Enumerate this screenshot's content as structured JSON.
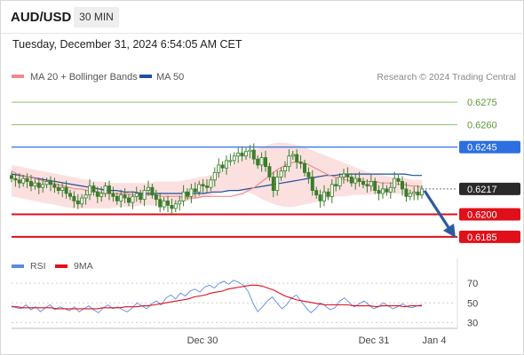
{
  "header": {
    "pair": "AUD/USD",
    "timeframe": "30 MIN",
    "timestamp": "Tuesday, December 31, 2024 6:54:05 AM CET"
  },
  "legend": {
    "ma20_label": "MA 20 + Bollinger Bands",
    "ma50_label": "MA 50",
    "credit": "Research © 2024 Trading Central"
  },
  "rsi_legend": {
    "rsi_label": "RSI",
    "ma_label": "9MA"
  },
  "colors": {
    "candle": "#3a7d2a",
    "ma20": "#f08a8a",
    "bollinger_fill": "#fbdada",
    "ma50": "#1f4e9c",
    "resistance_green": "#8cc86a",
    "pivot_blue": "#2d6fe0",
    "support_red": "#e0101a",
    "arrow": "#2c5aa0",
    "rsi": "#5b8be0",
    "rsi_ma": "#e0101a"
  },
  "chart_data": [
    {
      "type": "line",
      "title": "",
      "ylim": [
        0.6176,
        0.6284
      ],
      "x_ticks": [
        "Dec 30",
        "Dec 31",
        "Jan 4"
      ],
      "levels": [
        {
          "value": 0.6275,
          "label": "0.6275",
          "style": "green-line"
        },
        {
          "value": 0.626,
          "label": "0.6260",
          "style": "green-line"
        },
        {
          "value": 0.6245,
          "label": "0.6245",
          "style": "blue-line"
        },
        {
          "value": 0.6217,
          "label": "0.6217",
          "style": "current-price"
        },
        {
          "value": 0.62,
          "label": "0.6200",
          "style": "red-line"
        },
        {
          "value": 0.6185,
          "label": "0.6185",
          "style": "red-line"
        }
      ],
      "candles_close": [
        0.6224,
        0.6223,
        0.6221,
        0.6224,
        0.6222,
        0.6219,
        0.6221,
        0.6218,
        0.622,
        0.6222,
        0.622,
        0.6218,
        0.6216,
        0.6218,
        0.6214,
        0.6212,
        0.6209,
        0.6207,
        0.6211,
        0.6213,
        0.6219,
        0.6215,
        0.6212,
        0.6214,
        0.6219,
        0.6214,
        0.6212,
        0.6209,
        0.6213,
        0.6211,
        0.6208,
        0.6212,
        0.6214,
        0.621,
        0.6216,
        0.6218,
        0.6213,
        0.621,
        0.6205,
        0.6209,
        0.6206,
        0.6204,
        0.6207,
        0.6209,
        0.6215,
        0.6212,
        0.6217,
        0.6215,
        0.622,
        0.6219,
        0.6218,
        0.6223,
        0.6228,
        0.6233,
        0.6231,
        0.6236,
        0.6236,
        0.6239,
        0.6241,
        0.6239,
        0.6242,
        0.6243,
        0.6237,
        0.6233,
        0.6238,
        0.6232,
        0.6225,
        0.6216,
        0.6225,
        0.6229,
        0.6232,
        0.6239,
        0.624,
        0.6235,
        0.6234,
        0.6228,
        0.6225,
        0.6216,
        0.6213,
        0.6209,
        0.6215,
        0.6212,
        0.622,
        0.6219,
        0.6225,
        0.6227,
        0.6225,
        0.6221,
        0.6224,
        0.6222,
        0.622,
        0.6219,
        0.6222,
        0.6216,
        0.6214,
        0.6217,
        0.6215,
        0.6218,
        0.6224,
        0.6222,
        0.6217,
        0.6212,
        0.6214,
        0.6215,
        0.6213,
        0.6217
      ],
      "ma20": [
        0.6229,
        0.6227,
        0.6226,
        0.6225,
        0.6224,
        0.6223,
        0.6222,
        0.6221,
        0.622,
        0.6219,
        0.6218,
        0.6217,
        0.6217,
        0.6216,
        0.6216,
        0.6215,
        0.6214,
        0.6214,
        0.6214,
        0.6214,
        0.6214,
        0.6213,
        0.6213,
        0.6213,
        0.6213,
        0.6213,
        0.6212,
        0.6212,
        0.6212,
        0.6212,
        0.6211,
        0.6211,
        0.6211,
        0.6212,
        0.6212,
        0.6212,
        0.6212,
        0.6212,
        0.6212,
        0.6213,
        0.6214,
        0.6216,
        0.6218,
        0.6221,
        0.6224,
        0.6227,
        0.623,
        0.6232,
        0.6234,
        0.6235,
        0.6235,
        0.6234,
        0.6232,
        0.623,
        0.6228,
        0.6226,
        0.6225,
        0.6224,
        0.6223,
        0.6222,
        0.6222,
        0.6222,
        0.6222,
        0.6222,
        0.6221,
        0.6221,
        0.6221,
        0.622,
        0.622,
        0.6219,
        0.6219,
        0.6218
      ],
      "bollinger_upper": [
        0.6233,
        0.6232,
        0.6231,
        0.623,
        0.6229,
        0.6228,
        0.6227,
        0.6226,
        0.6225,
        0.6224,
        0.6223,
        0.6222,
        0.6222,
        0.6221,
        0.6221,
        0.6221,
        0.6221,
        0.6221,
        0.6221,
        0.6222,
        0.6222,
        0.6222,
        0.6222,
        0.6223,
        0.6224,
        0.6225,
        0.6226,
        0.6228,
        0.623,
        0.6233,
        0.6237,
        0.624,
        0.6243,
        0.6245,
        0.6247,
        0.6248,
        0.6248,
        0.6247,
        0.6246,
        0.6244,
        0.6242,
        0.624,
        0.6238,
        0.6236,
        0.6234,
        0.6232,
        0.623,
        0.6228,
        0.6227,
        0.6226,
        0.6225,
        0.6224,
        0.6224,
        0.6223,
        0.6223
      ],
      "bollinger_lower": [
        0.6212,
        0.6211,
        0.621,
        0.6209,
        0.6208,
        0.6207,
        0.6206,
        0.6205,
        0.6204,
        0.6204,
        0.6204,
        0.6204,
        0.6204,
        0.6204,
        0.6205,
        0.6205,
        0.6205,
        0.6206,
        0.6206,
        0.6206,
        0.6207,
        0.6207,
        0.6208,
        0.6209,
        0.621,
        0.6211,
        0.6212,
        0.6214,
        0.6215,
        0.6216,
        0.6216,
        0.6215,
        0.6213,
        0.621,
        0.6208,
        0.6206,
        0.6205,
        0.6205,
        0.6206,
        0.6207,
        0.6208,
        0.621,
        0.6211,
        0.6212,
        0.6212,
        0.6213,
        0.6213,
        0.6213,
        0.6214,
        0.6214,
        0.6214,
        0.6214,
        0.6213,
        0.6212,
        0.6212
      ],
      "ma50": [
        0.6227,
        0.6226,
        0.6225,
        0.6224,
        0.6223,
        0.6222,
        0.6221,
        0.622,
        0.6219,
        0.6218,
        0.6217,
        0.6216,
        0.6216,
        0.6215,
        0.6215,
        0.6214,
        0.6214,
        0.6214,
        0.6214,
        0.6214,
        0.6214,
        0.6214,
        0.6214,
        0.6215,
        0.6215,
        0.6216,
        0.6216,
        0.6217,
        0.6218,
        0.6219,
        0.622,
        0.6221,
        0.6222,
        0.6223,
        0.6224,
        0.6225,
        0.6226,
        0.6226,
        0.6227,
        0.6227,
        0.6227,
        0.6227,
        0.6227,
        0.6227,
        0.6227,
        0.6227,
        0.6226,
        0.6226
      ],
      "forecast": {
        "from": 0.6217,
        "to": 0.6185,
        "direction": "down"
      }
    },
    {
      "type": "line",
      "title": "",
      "ylim": [
        25,
        80
      ],
      "y_ticks": [
        70,
        50,
        30
      ],
      "series": [
        {
          "name": "RSI",
          "values": [
            47,
            45,
            44,
            48,
            43,
            46,
            41,
            45,
            48,
            43,
            46,
            44,
            42,
            46,
            41,
            44,
            47,
            43,
            40,
            45,
            48,
            44,
            46,
            43,
            41,
            45,
            50,
            47,
            44,
            49,
            52,
            48,
            55,
            58,
            54,
            60,
            57,
            62,
            64,
            61,
            66,
            68,
            65,
            70,
            72,
            69,
            73,
            71,
            68,
            62,
            50,
            41,
            46,
            52,
            56,
            50,
            44,
            48,
            55,
            58,
            52,
            45,
            40,
            44,
            50,
            47,
            43,
            45,
            52,
            55,
            50,
            46,
            49,
            52,
            48,
            44,
            46,
            50,
            47,
            44,
            46,
            49,
            46,
            45,
            47,
            48
          ]
        },
        {
          "name": "9MA",
          "values": [
            46,
            46,
            45,
            45,
            45,
            45,
            45,
            45,
            44,
            44,
            44,
            44,
            44,
            44,
            44,
            44,
            45,
            45,
            45,
            45,
            46,
            46,
            46,
            47,
            47,
            48,
            49,
            50,
            51,
            52,
            53,
            54,
            56,
            57,
            58,
            60,
            61,
            62,
            64,
            65,
            66,
            67,
            68,
            68,
            67,
            65,
            63,
            60,
            57,
            55,
            53,
            52,
            51,
            50,
            49,
            48,
            48,
            48,
            48,
            48,
            47,
            47,
            47,
            47,
            46,
            47,
            47,
            47,
            47,
            46,
            47,
            47,
            47
          ]
        }
      ]
    }
  ]
}
